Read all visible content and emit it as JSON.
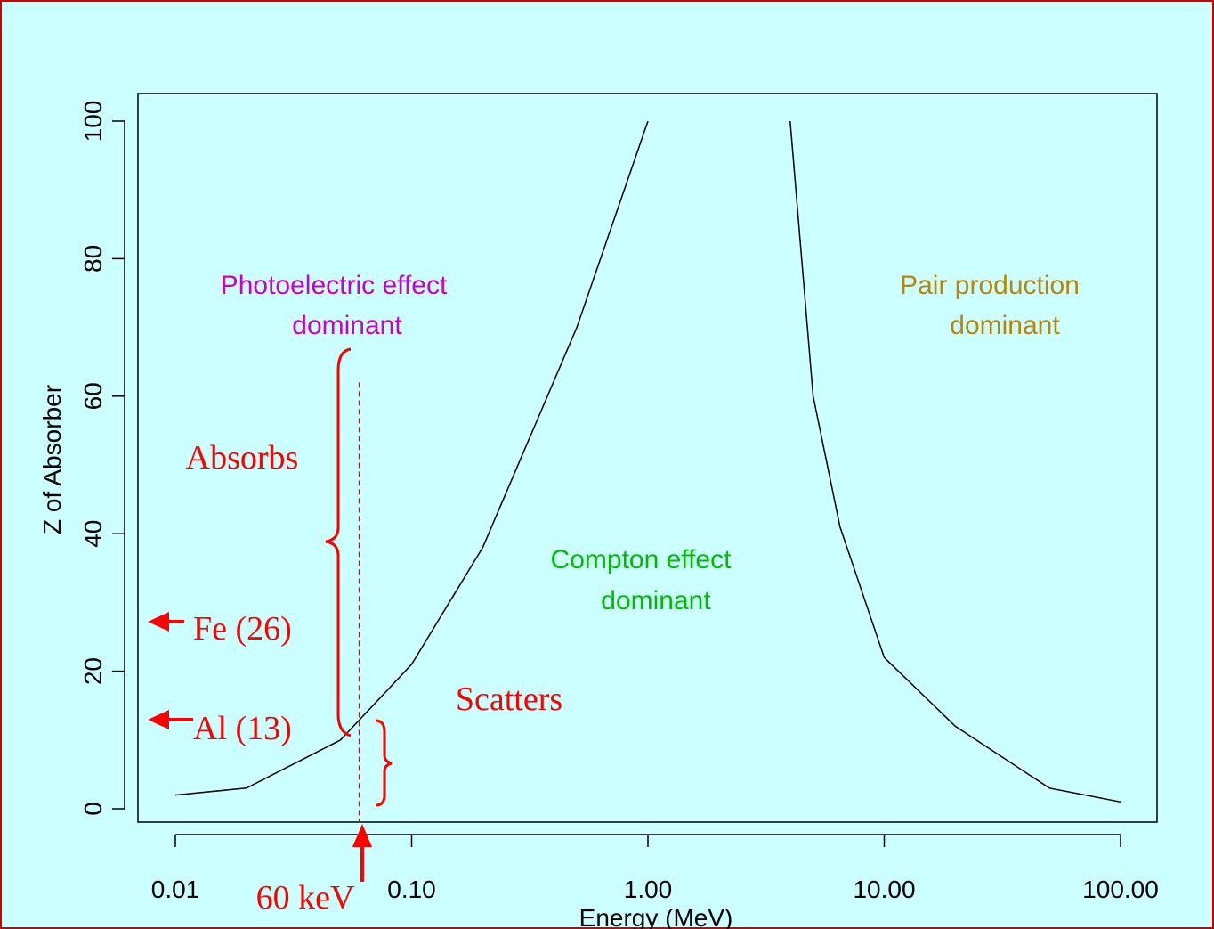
{
  "chart_data": {
    "type": "line",
    "xlabel": "Energy (MeV)",
    "ylabel": "Z of Absorber",
    "x_scale": "log",
    "xlim": [
      0.007,
      200
    ],
    "ylim": [
      -4,
      104
    ],
    "x_ticks": [
      0.01,
      0.1,
      1,
      10,
      100
    ],
    "x_tick_labels": [
      "0.01",
      "0.10",
      "1.00",
      "10.00",
      "100.00"
    ],
    "y_ticks": [
      0,
      20,
      40,
      60,
      80,
      100
    ],
    "y_tick_labels": [
      "0",
      "20",
      "40",
      "60",
      "80",
      "100"
    ],
    "grid": false,
    "series": [
      {
        "points": [
          [
            0.01,
            2
          ],
          [
            0.02,
            3
          ],
          [
            0.05,
            10
          ],
          [
            0.1,
            21
          ],
          [
            0.2,
            38
          ],
          [
            0.5,
            70
          ],
          [
            1.0,
            100
          ]
        ]
      },
      {
        "points": [
          [
            4.0,
            100
          ],
          [
            5.0,
            60
          ],
          [
            6.5,
            41
          ],
          [
            10.0,
            22
          ],
          [
            20.0,
            12
          ],
          [
            50.0,
            3
          ],
          [
            100.0,
            1
          ]
        ]
      }
    ],
    "annotations": {
      "photoelectric": {
        "line1": "Photoelectric effect",
        "line2": "dominant",
        "color": "#cc00cc"
      },
      "compton": {
        "line1": "Compton effect",
        "line2": "dominant",
        "color": "#00bb00"
      },
      "pair": {
        "line1": "Pair production",
        "line2": "dominant",
        "color": "#b8860b"
      },
      "absorbs": "Absorbs",
      "scatters": "Scatters",
      "fe": "Fe (26)",
      "al": "Al (13)",
      "kev60": "60 keV",
      "fe_z": 26,
      "al_z": 13,
      "kev60_energy": 0.06,
      "dashed_line_top_z": 62,
      "absorbs_range": [
        11,
        67
      ],
      "scatters_range": [
        0,
        13
      ],
      "highlight_color": "#ff0000"
    }
  }
}
